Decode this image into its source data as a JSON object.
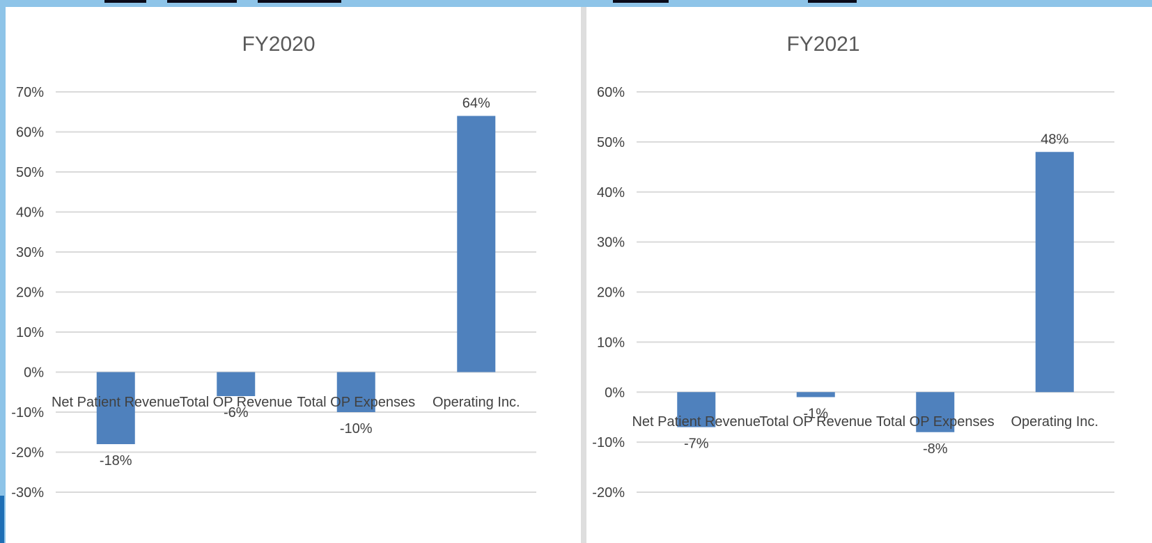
{
  "colors": {
    "bar": "#4f81bd",
    "grid": "#d9d9d9",
    "text": "#404040",
    "background_frame": "#8ec4e8"
  },
  "chart_data": [
    {
      "type": "bar",
      "title": "FY2020",
      "categories": [
        "Net Patient Revenue",
        "Total OP Revenue",
        "Total OP Expenses",
        "Operating Inc."
      ],
      "values": [
        -18,
        -6,
        -10,
        64
      ],
      "value_labels": [
        "-18%",
        "-6%",
        "-10%",
        "64%"
      ],
      "ylim": [
        -30,
        70
      ],
      "yticks": [
        -30,
        -20,
        -10,
        0,
        10,
        20,
        30,
        40,
        50,
        60,
        70
      ],
      "ytick_labels": [
        "-30%",
        "-20%",
        "-10%",
        "0%",
        "10%",
        "20%",
        "30%",
        "40%",
        "50%",
        "60%",
        "70%"
      ],
      "grid": true
    },
    {
      "type": "bar",
      "title": "FY2021",
      "categories": [
        "Net Patient Revenue",
        "Total OP Revenue",
        "Total OP Expenses",
        "Operating Inc."
      ],
      "values": [
        -7,
        -1,
        -8,
        48
      ],
      "value_labels": [
        "-7%",
        "-1%",
        "-8%",
        "48%"
      ],
      "ylim": [
        -20,
        60
      ],
      "yticks": [
        -20,
        -10,
        0,
        10,
        20,
        30,
        40,
        50,
        60
      ],
      "ytick_labels": [
        "-20%",
        "-10%",
        "0%",
        "10%",
        "20%",
        "30%",
        "40%",
        "50%",
        "60%"
      ],
      "grid": true
    }
  ]
}
